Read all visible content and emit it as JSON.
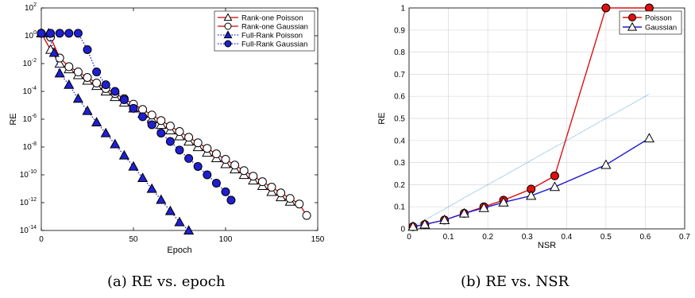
{
  "chart_data": [
    {
      "type": "line",
      "title": "",
      "caption": "(a) RE vs. epoch",
      "xlabel": "Epoch",
      "ylabel": "RE",
      "xlim": [
        0,
        150
      ],
      "ylim": [
        1e-14,
        100
      ],
      "yscale": "log",
      "grid": false,
      "legend": "top-right",
      "xticks": [
        "0",
        "50",
        "100",
        "150"
      ],
      "yticks_exp": [
        2,
        0,
        -2,
        -4,
        -6,
        -8,
        -10,
        -12,
        -14
      ],
      "series": [
        {
          "name": "Rank-one Poisson",
          "color": "#d40000",
          "dash": "solid",
          "marker": "triangle",
          "marker_fill": "#ffffff",
          "x": [
            0,
            5,
            10,
            15,
            20,
            25,
            30,
            35,
            40,
            45,
            50,
            55,
            60,
            65,
            70,
            75,
            80,
            85,
            90,
            95,
            100,
            105,
            110,
            115,
            120,
            125,
            130,
            135
          ],
          "y": [
            1.5,
            0.1,
            0.01,
            0.004,
            0.0015,
            0.0006,
            0.00025,
            0.0001,
            4e-05,
            1.6e-05,
            6e-06,
            2.5e-06,
            1e-06,
            4e-07,
            1.6e-07,
            6e-08,
            2.5e-08,
            1e-08,
            4e-09,
            1.6e-09,
            6e-10,
            2.5e-10,
            1e-10,
            4e-11,
            1.6e-11,
            6e-12,
            2.5e-12,
            1.2e-12
          ]
        },
        {
          "name": "Rank-one Gaussian",
          "color": "#d40000",
          "dash": "solid",
          "marker": "circle",
          "marker_fill": "#ffffff",
          "x": [
            0,
            5,
            10,
            15,
            20,
            25,
            30,
            35,
            40,
            45,
            50,
            55,
            60,
            65,
            70,
            75,
            80,
            85,
            90,
            95,
            100,
            105,
            110,
            115,
            120,
            125,
            130,
            135,
            140,
            144
          ],
          "y": [
            1.5,
            0.8,
            0.025,
            0.006,
            0.0025,
            0.001,
            0.0004,
            0.00016,
            7e-05,
            3e-05,
            1.2e-05,
            5e-06,
            2e-06,
            8e-07,
            3.2e-07,
            1.3e-07,
            5e-08,
            2e-08,
            8e-09,
            3.2e-09,
            1.3e-09,
            5e-10,
            2e-10,
            8e-11,
            3.2e-11,
            1.3e-11,
            5e-12,
            2e-12,
            8e-13,
            1.2e-13
          ]
        },
        {
          "name": "Full-Rank Poisson",
          "color": "#1f1fd2",
          "dash": "dotted",
          "marker": "triangle",
          "marker_fill": "#1f1fd2",
          "x": [
            0,
            4,
            7,
            10,
            15,
            20,
            25,
            30,
            35,
            40,
            45,
            50,
            55,
            60,
            65,
            70,
            75,
            80
          ],
          "y": [
            1.5,
            1.5,
            0.06,
            0.002,
            0.0003,
            3e-05,
            4e-06,
            6e-07,
            1e-07,
            1.6e-08,
            2.5e-09,
            4e-10,
            6e-11,
            1e-11,
            1.6e-12,
            2.5e-13,
            4e-14,
            1e-14
          ]
        },
        {
          "name": "Full-Rank Gaussian",
          "color": "#1f1fd2",
          "dash": "dotted",
          "marker": "circle",
          "marker_fill": "#1f1fd2",
          "x": [
            0,
            5,
            10,
            15,
            20,
            25,
            30,
            35,
            40,
            45,
            50,
            55,
            60,
            65,
            70,
            75,
            80,
            85,
            90,
            95,
            100,
            103
          ],
          "y": [
            1.5,
            1.5,
            1.5,
            1.5,
            1.5,
            0.1,
            0.0025,
            0.0003,
            0.0001,
            2.5e-05,
            6e-06,
            1.5e-06,
            4e-07,
            1e-07,
            2.5e-08,
            6e-09,
            1.5e-09,
            4e-10,
            1e-10,
            2.5e-11,
            6e-12,
            1.5e-12
          ]
        }
      ]
    },
    {
      "type": "line",
      "title": "",
      "caption": "(b) RE vs. NSR",
      "xlabel": "NSR",
      "ylabel": "RE",
      "xlim": [
        0,
        0.7
      ],
      "ylim": [
        0,
        1
      ],
      "grid": true,
      "legend": "top-right",
      "xticks": [
        "0",
        "0.1",
        "0.2",
        "0.3",
        "0.4",
        "0.5",
        "0.6",
        "0.7"
      ],
      "yticks": [
        "0",
        "0.1",
        "0.2",
        "0.3",
        "0.4",
        "0.5",
        "0.6",
        "0.7",
        "0.8",
        "0.9",
        "1"
      ],
      "series": [
        {
          "name": "Poisson",
          "color": "#e01010",
          "dash": "solid",
          "marker": "circle",
          "marker_fill": "#e01010",
          "x": [
            0.01,
            0.04,
            0.09,
            0.14,
            0.19,
            0.24,
            0.31,
            0.37,
            0.5,
            0.61
          ],
          "y": [
            0.01,
            0.02,
            0.04,
            0.07,
            0.1,
            0.13,
            0.18,
            0.24,
            1.0,
            1.0
          ]
        },
        {
          "name": "Gaussian",
          "color": "#1f1fd2",
          "dash": "solid",
          "marker": "triangle",
          "marker_fill": "#ffffff",
          "x": [
            0.01,
            0.04,
            0.09,
            0.14,
            0.19,
            0.24,
            0.31,
            0.37,
            0.5,
            0.61
          ],
          "y": [
            0.01,
            0.02,
            0.04,
            0.07,
            0.095,
            0.12,
            0.15,
            0.19,
            0.29,
            0.41
          ]
        }
      ],
      "reference_line": {
        "color": "#4aa0d8",
        "x": [
          0,
          0.61
        ],
        "y": [
          0,
          0.61
        ]
      }
    }
  ]
}
